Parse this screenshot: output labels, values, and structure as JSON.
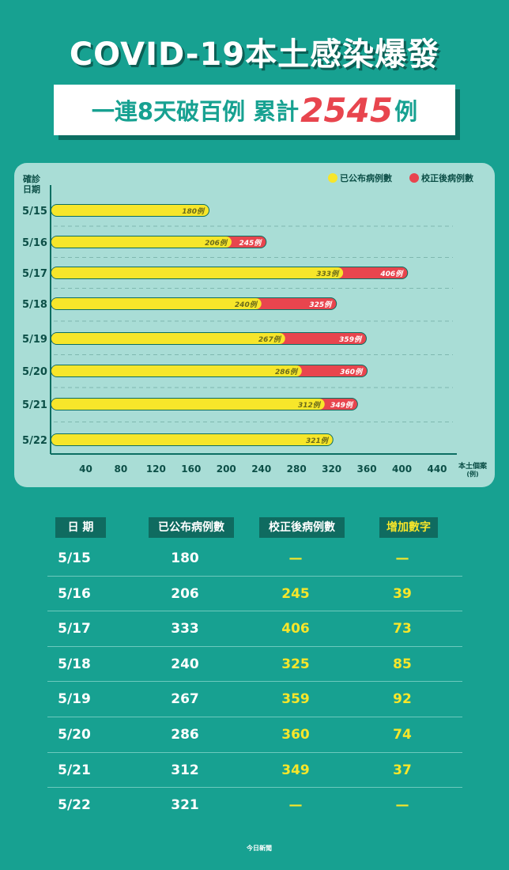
{
  "header": {
    "title": "COVID-19本土感染爆發",
    "subtitle_prefix": "一連8天破百例 累計",
    "subtitle_total": "2545",
    "subtitle_suffix": "例"
  },
  "colors": {
    "background": "#17a191",
    "panel": "#a9ddd6",
    "published": "#f7e62a",
    "corrected": "#e8454e",
    "bar_outline": "#0c6e62"
  },
  "chart_data": {
    "type": "bar",
    "orientation": "horizontal",
    "ylabel": "確診日期",
    "xlabel": "本土個案(例)",
    "xlim": [
      0,
      440
    ],
    "xticks": [
      40,
      80,
      120,
      160,
      200,
      240,
      280,
      320,
      360,
      400,
      440
    ],
    "legend_position": "top-right",
    "categories": [
      "5/15",
      "5/16",
      "5/17",
      "5/18",
      "5/19",
      "5/20",
      "5/21",
      "5/22"
    ],
    "series": [
      {
        "name": "已公布病例數",
        "color": "#f7e62a",
        "values": [
          180,
          206,
          333,
          240,
          267,
          286,
          312,
          321
        ],
        "labels": [
          "180例",
          "206例",
          "333例",
          "240例",
          "267例",
          "286例",
          "312例",
          "321例"
        ]
      },
      {
        "name": "校正後病例數",
        "color": "#e8454e",
        "values": [
          null,
          245,
          406,
          325,
          359,
          360,
          349,
          null
        ],
        "labels": [
          "",
          "245例",
          "406例",
          "325例",
          "359例",
          "360例",
          "349例",
          ""
        ]
      }
    ]
  },
  "table": {
    "headers": [
      "日 期",
      "已公布病例數",
      "校正後病例數",
      "增加數字"
    ],
    "rows": [
      [
        "5/15",
        "180",
        "—",
        "—"
      ],
      [
        "5/16",
        "206",
        "245",
        "39"
      ],
      [
        "5/17",
        "333",
        "406",
        "73"
      ],
      [
        "5/18",
        "240",
        "325",
        "85"
      ],
      [
        "5/19",
        "267",
        "359",
        "92"
      ],
      [
        "5/20",
        "286",
        "360",
        "74"
      ],
      [
        "5/21",
        "312",
        "349",
        "37"
      ],
      [
        "5/22",
        "321",
        "—",
        "—"
      ]
    ]
  },
  "footer": {
    "logo_text": "今日新聞"
  }
}
